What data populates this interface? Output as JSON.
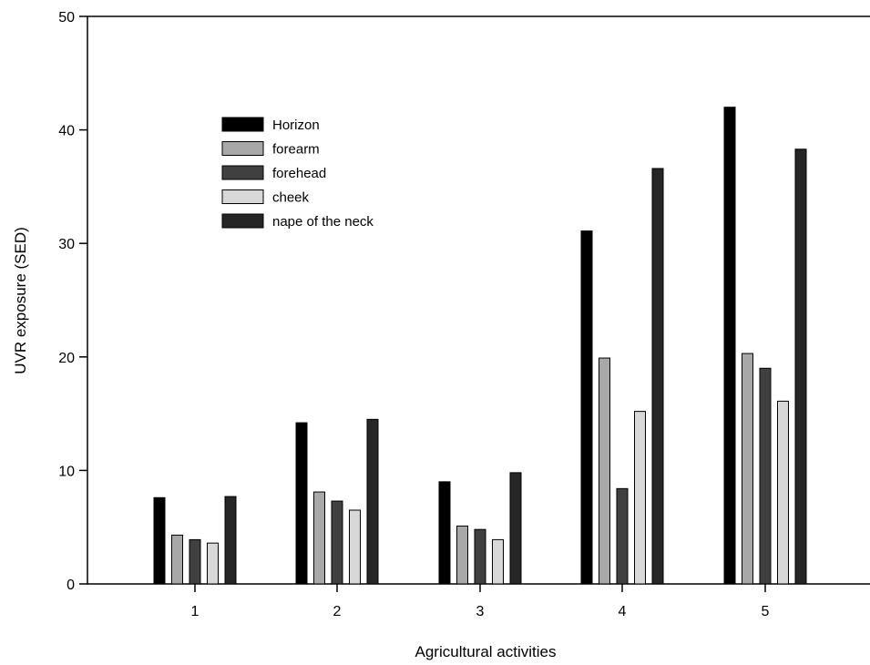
{
  "chart_data": {
    "type": "bar",
    "title": "",
    "xlabel": "Agricultural activities",
    "ylabel": "UVR exposure (SED)",
    "ylim": [
      0,
      50
    ],
    "yticks": [
      0,
      10,
      20,
      30,
      40,
      50
    ],
    "grid": false,
    "legend_position": "top-left",
    "categories": [
      "1",
      "2",
      "3",
      "4",
      "5"
    ],
    "series": [
      {
        "name": "Horizon",
        "color": "#000000",
        "values": [
          7.6,
          14.2,
          9.0,
          31.1,
          42.0
        ]
      },
      {
        "name": "forearm",
        "color": "#a8a8a8",
        "values": [
          4.3,
          8.1,
          5.1,
          19.9,
          20.3
        ]
      },
      {
        "name": "forehead",
        "color": "#404040",
        "values": [
          3.9,
          7.3,
          4.8,
          8.4,
          19.0
        ]
      },
      {
        "name": "cheek",
        "color": "#d8d8d8",
        "values": [
          3.6,
          6.5,
          3.9,
          15.2,
          16.1
        ]
      },
      {
        "name": "nape of the neck",
        "color": "#262626",
        "values": [
          7.7,
          14.5,
          9.8,
          36.6,
          38.3
        ]
      }
    ]
  }
}
